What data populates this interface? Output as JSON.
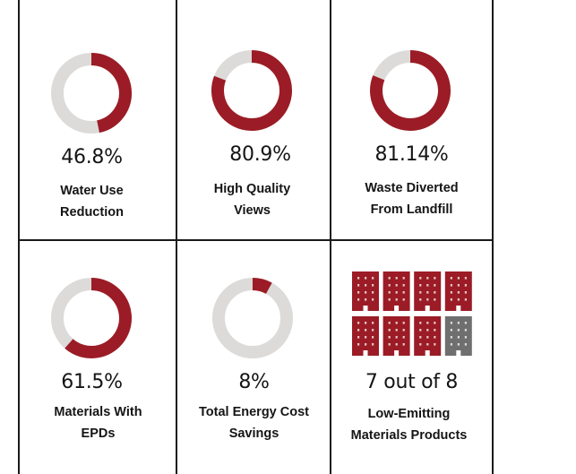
{
  "colors": {
    "accent": "#9b1c26",
    "remainder": "#dcdbd9",
    "inactive_building": "#6f6f6f",
    "grid": "#1a1a1a"
  },
  "metrics": [
    {
      "value_text": "46.8%",
      "fraction": 0.468,
      "label_lines": [
        "Water Use",
        "Reduction"
      ]
    },
    {
      "value_text": "80.9%",
      "fraction": 0.809,
      "label_lines": [
        "High Quality",
        "Views"
      ]
    },
    {
      "value_text": "81.14%",
      "fraction": 0.8114,
      "label_lines": [
        "Waste Diverted",
        "From Landfill"
      ]
    },
    {
      "value_text": "61.5%",
      "fraction": 0.615,
      "label_lines": [
        "Materials With",
        "EPDs"
      ]
    },
    {
      "value_text": "8%",
      "fraction": 0.08,
      "label_lines": [
        "Total Energy Cost",
        "Savings"
      ]
    }
  ],
  "low_emitting": {
    "value_text": "7 out of 8",
    "achieved": 7,
    "total": 8,
    "label_lines": [
      "Low-Emitting",
      "Materials Products"
    ],
    "icon": "building-icon"
  }
}
